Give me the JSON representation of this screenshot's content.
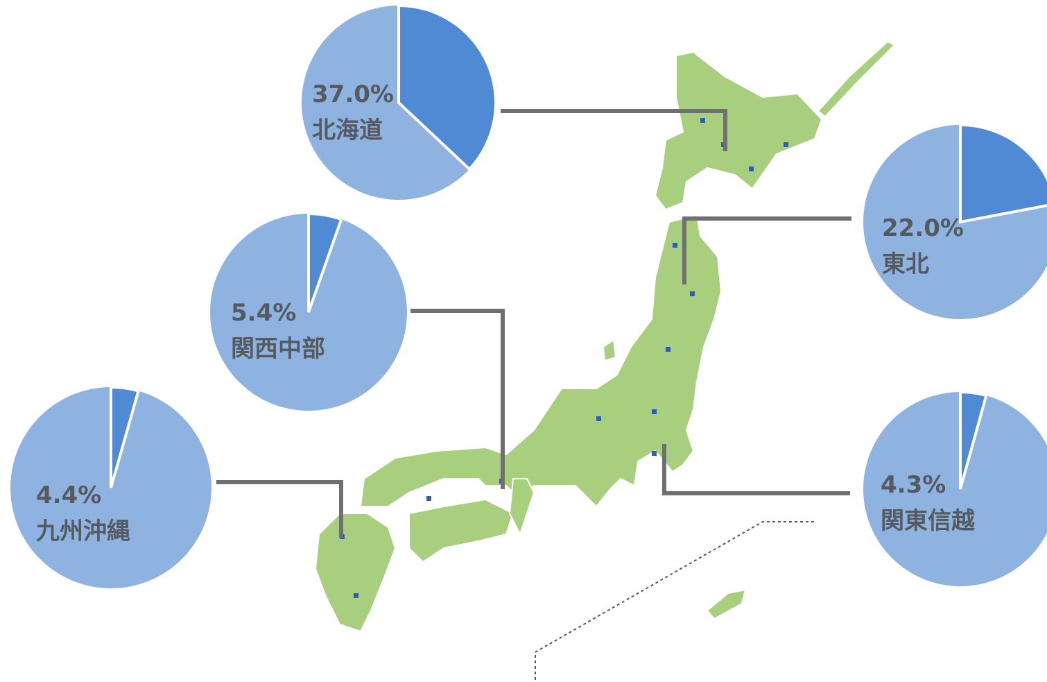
{
  "chart_data": [
    {
      "type": "pie",
      "title": "北海道",
      "values": [
        37.0
      ],
      "value_labels": [
        "37.0%"
      ],
      "colors": [
        "#5089d4",
        "#8fb3e1"
      ]
    },
    {
      "type": "pie",
      "title": "東北",
      "values": [
        22.0
      ],
      "value_labels": [
        "22.0%"
      ],
      "colors": [
        "#5089d4",
        "#8fb3e1"
      ]
    },
    {
      "type": "pie",
      "title": "関西中部",
      "values": [
        5.4
      ],
      "value_labels": [
        "5.4%"
      ],
      "colors": [
        "#5089d4",
        "#8fb3e1"
      ]
    },
    {
      "type": "pie",
      "title": "関東信越",
      "values": [
        4.3
      ],
      "value_labels": [
        "4.3%"
      ],
      "colors": [
        "#5089d4",
        "#8fb3e1"
      ]
    },
    {
      "type": "pie",
      "title": "九州沖縄",
      "values": [
        4.4
      ],
      "value_labels": [
        "4.4%"
      ],
      "colors": [
        "#5089d4",
        "#8fb3e1"
      ]
    }
  ]
}
